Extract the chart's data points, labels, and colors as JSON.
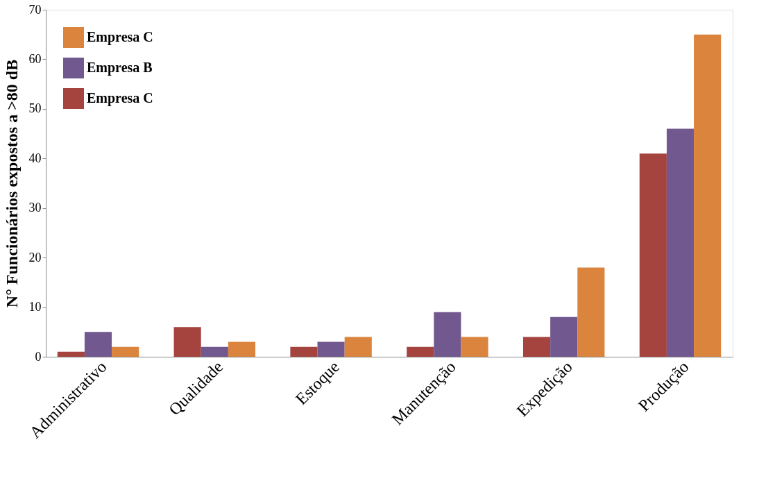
{
  "chart_data": {
    "type": "bar",
    "ylabel": "N° Funcionários expostos a >80 dB",
    "categories": [
      "Administrativo",
      "Qualidade",
      "Estoque",
      "Manutenção",
      "Expedição",
      "Produção"
    ],
    "series": [
      {
        "name": "Empresa C",
        "color": "#a5443f",
        "values": [
          1,
          6,
          2,
          2,
          4,
          41
        ]
      },
      {
        "name": "Empresa B",
        "color": "#71588f",
        "values": [
          5,
          2,
          3,
          9,
          8,
          46
        ]
      },
      {
        "name": "Empresa C",
        "color": "#db843d",
        "values": [
          2,
          3,
          4,
          4,
          18,
          65
        ]
      }
    ],
    "ylim": [
      0,
      70
    ],
    "yticks": [
      0,
      10,
      20,
      30,
      40,
      50,
      60,
      70
    ],
    "grid": false,
    "legend": "top left"
  }
}
